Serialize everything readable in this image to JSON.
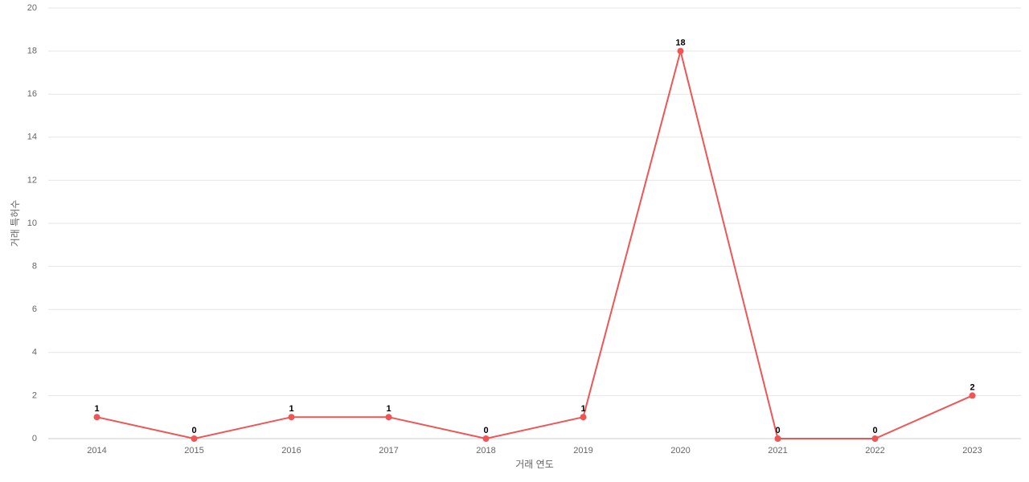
{
  "chart_data": {
    "type": "line",
    "x_label": "거래 연도",
    "y_label": "거래 특허수",
    "categories": [
      "2014",
      "2015",
      "2016",
      "2017",
      "2018",
      "2019",
      "2020",
      "2021",
      "2022",
      "2023"
    ],
    "series": [
      {
        "name": "거래 특허수",
        "color": "#ef5555",
        "values": [
          1,
          0,
          1,
          1,
          0,
          1,
          18,
          0,
          0,
          2
        ]
      }
    ],
    "ylim": [
      0,
      20
    ],
    "yticks": [
      0,
      2,
      4,
      6,
      8,
      10,
      12,
      14,
      16,
      18,
      20
    ],
    "grid": true
  }
}
